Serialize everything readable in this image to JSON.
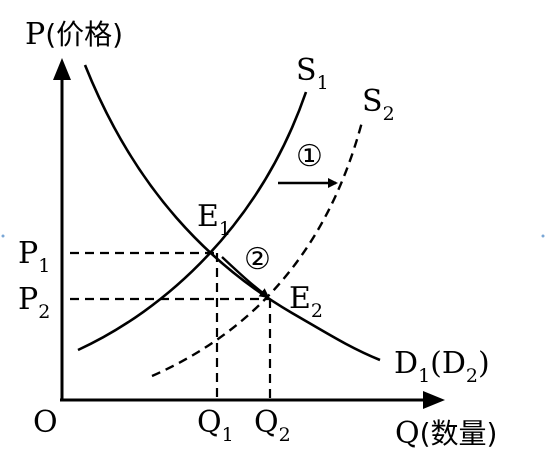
{
  "axes": {
    "y_label_main": "P",
    "y_label_paren": "(价格)",
    "x_label_main": "Q",
    "x_label_paren": "(数量)",
    "origin": "O"
  },
  "curves": {
    "s1": {
      "main": "S",
      "sub": "1"
    },
    "s2": {
      "main": "S",
      "sub": "2"
    },
    "demand": {
      "d1_main": "D",
      "d1_sub": "1",
      "d2_main": "(D",
      "d2_sub": "2",
      "close": ")"
    }
  },
  "points": {
    "e1": {
      "main": "E",
      "sub": "1"
    },
    "e2": {
      "main": "E",
      "sub": "2"
    }
  },
  "ticks": {
    "p1": {
      "main": "P",
      "sub": "1"
    },
    "p2": {
      "main": "P",
      "sub": "2"
    },
    "q1": {
      "main": "Q",
      "sub": "1"
    },
    "q2": {
      "main": "Q",
      "sub": "2"
    }
  },
  "markers": {
    "shift_supply": "①",
    "move_along_demand": "②"
  }
}
